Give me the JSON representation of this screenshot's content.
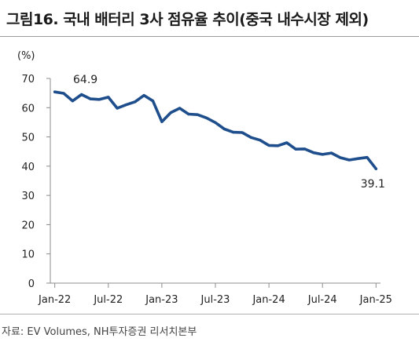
{
  "header": {
    "title": "그림16. 국내 배터리 3사 점유율 추이(중국 내수시장 제외)"
  },
  "footer": {
    "source": "자료: EV Volumes, NH투자증권 리서치본부"
  },
  "chart_data": {
    "type": "line",
    "unit_label": "(%)",
    "ylim": [
      0,
      70
    ],
    "yticks": [
      0,
      10,
      20,
      30,
      40,
      50,
      60,
      70
    ],
    "xtick_labels": [
      "Jan-22",
      "Jul-22",
      "Jan-23",
      "Jul-23",
      "Jan-24",
      "Jul-24",
      "Jan-25"
    ],
    "x": [
      "Jan-22",
      "Feb-22",
      "Mar-22",
      "Apr-22",
      "May-22",
      "Jun-22",
      "Jul-22",
      "Aug-22",
      "Sep-22",
      "Oct-22",
      "Nov-22",
      "Dec-22",
      "Jan-23",
      "Feb-23",
      "Mar-23",
      "Apr-23",
      "May-23",
      "Jun-23",
      "Jul-23",
      "Aug-23",
      "Sep-23",
      "Oct-23",
      "Nov-23",
      "Dec-23",
      "Jan-24",
      "Feb-24",
      "Mar-24",
      "Apr-24",
      "May-24",
      "Jun-24",
      "Jul-24",
      "Aug-24",
      "Sep-24",
      "Oct-24",
      "Nov-24",
      "Dec-24",
      "Jan-25"
    ],
    "series": [
      {
        "color": "#1f4e8c",
        "values": [
          65.4,
          64.9,
          62.3,
          64.5,
          63.0,
          62.8,
          63.6,
          59.8,
          61.0,
          62.0,
          64.2,
          62.3,
          55.2,
          58.3,
          59.8,
          57.8,
          57.6,
          56.5,
          54.9,
          52.7,
          51.6,
          51.5,
          49.8,
          48.9,
          47.1,
          47.0,
          48.0,
          45.8,
          45.9,
          44.6,
          44.0,
          44.5,
          42.9,
          42.1,
          42.6,
          43.0,
          39.1
        ]
      }
    ],
    "annotations": [
      {
        "text": "64.9",
        "x": "Feb-22",
        "y": 64.9
      },
      {
        "text": "39.1",
        "x": "Jan-25",
        "y": 39.1
      }
    ],
    "grid": false,
    "legend": "none"
  }
}
